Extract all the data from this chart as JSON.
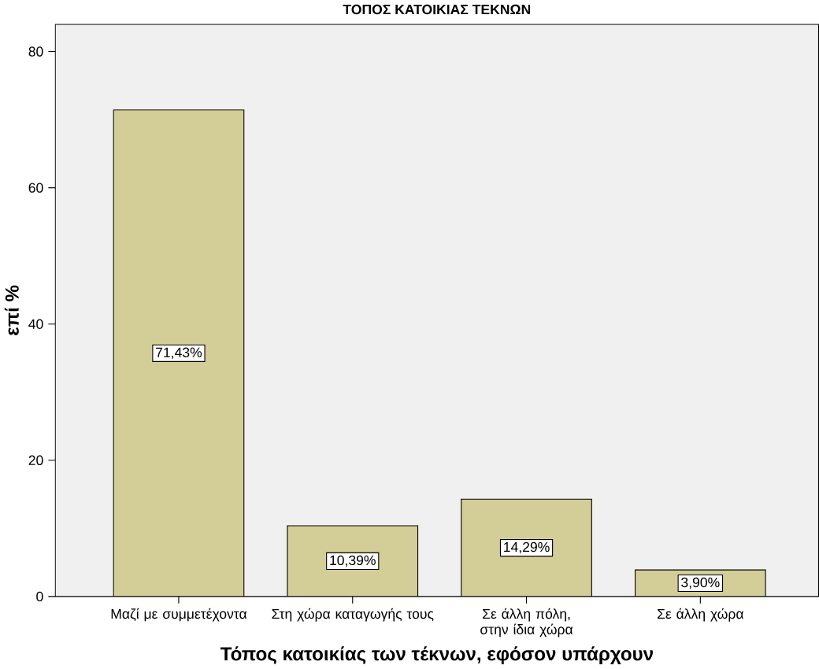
{
  "chart_data": {
    "type": "bar",
    "title": "ΤΟΠΟΣ ΚΑΤΟΙΚΙΑΣ ΤΕΚΝΩΝ",
    "xlabel": "Τόπος κατοικίας των τέκνων, εφόσον υπάρχουν",
    "ylabel": "επί %",
    "categories": [
      "Μαζί με συμμετέχοντα",
      "Στη χώρα καταγωγής τους",
      "Σε άλλη πόλη, στην ίδια χώρα",
      "Σε άλλη χώρα"
    ],
    "values": [
      71.43,
      10.39,
      14.29,
      3.9
    ],
    "value_labels": [
      "71,43%",
      "10,39%",
      "14,29%",
      "3,90%"
    ],
    "color": "#d3ce97",
    "ylim": [
      0,
      84
    ],
    "yticks": [
      0,
      20,
      40,
      60,
      80
    ],
    "grid": false
  }
}
